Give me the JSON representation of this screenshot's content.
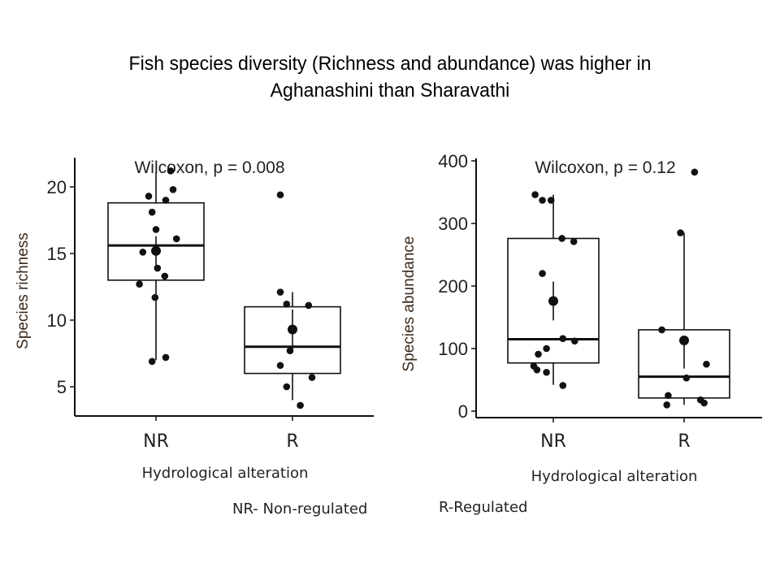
{
  "slide": {
    "title_line1": "Fish species diversity (Richness and abundance) was higher in",
    "title_line2": "Aghanashini than Sharavathi",
    "legend_note_nr": "NR- Non-regulated",
    "legend_note_r": "R-Regulated"
  },
  "chart_data": [
    {
      "type": "box",
      "id": "richness",
      "title": "",
      "annotation": "Wilcoxon, p = 0.008",
      "xlabel": "Hydrological alteration",
      "ylabel": "Species richness",
      "categories": [
        "NR",
        "R"
      ],
      "ylim": [
        3,
        22
      ],
      "yticks": [
        5,
        10,
        15,
        20
      ],
      "grid": false,
      "boxes": [
        {
          "category": "NR",
          "q1": 13.0,
          "median": 15.6,
          "q3": 18.8,
          "whisker_low": 7.0,
          "whisker_high": 21.1,
          "mean": 15.2,
          "mean_err_low": 14.0,
          "mean_err_high": 16.3
        },
        {
          "category": "R",
          "q1": 6.0,
          "median": 8.0,
          "q3": 11.0,
          "whisker_low": 4.0,
          "whisker_high": 12.1,
          "mean": 9.3,
          "mean_err_low": 7.8,
          "mean_err_high": 10.8
        }
      ],
      "points": [
        {
          "category": "NR",
          "jitter": 0.3,
          "y": 21.2
        },
        {
          "category": "NR",
          "jitter": 0.35,
          "y": 19.8
        },
        {
          "category": "NR",
          "jitter": -0.15,
          "y": 19.3
        },
        {
          "category": "NR",
          "jitter": 0.2,
          "y": 19.0
        },
        {
          "category": "NR",
          "jitter": -0.08,
          "y": 18.1
        },
        {
          "category": "NR",
          "jitter": 0.0,
          "y": 16.8
        },
        {
          "category": "NR",
          "jitter": 0.42,
          "y": 16.1
        },
        {
          "category": "NR",
          "jitter": -0.27,
          "y": 15.1
        },
        {
          "category": "NR",
          "jitter": -0.02,
          "y": 15.2
        },
        {
          "category": "NR",
          "jitter": 0.03,
          "y": 13.9
        },
        {
          "category": "NR",
          "jitter": 0.18,
          "y": 13.3
        },
        {
          "category": "NR",
          "jitter": -0.34,
          "y": 12.7
        },
        {
          "category": "NR",
          "jitter": -0.02,
          "y": 11.7
        },
        {
          "category": "NR",
          "jitter": -0.08,
          "y": 6.9
        },
        {
          "category": "NR",
          "jitter": 0.2,
          "y": 7.2
        },
        {
          "category": "R",
          "jitter": -0.25,
          "y": 19.4
        },
        {
          "category": "R",
          "jitter": -0.25,
          "y": 12.1
        },
        {
          "category": "R",
          "jitter": -0.12,
          "y": 11.2
        },
        {
          "category": "R",
          "jitter": 0.33,
          "y": 11.1
        },
        {
          "category": "R",
          "jitter": -0.05,
          "y": 7.7
        },
        {
          "category": "R",
          "jitter": -0.25,
          "y": 6.6
        },
        {
          "category": "R",
          "jitter": 0.4,
          "y": 5.7
        },
        {
          "category": "R",
          "jitter": -0.12,
          "y": 5.0
        },
        {
          "category": "R",
          "jitter": 0.16,
          "y": 3.6
        }
      ]
    },
    {
      "type": "box",
      "id": "abundance",
      "title": "",
      "annotation": "Wilcoxon, p = 0.12",
      "xlabel": "Hydrological alteration",
      "ylabel": "Species abundance",
      "categories": [
        "NR",
        "R"
      ],
      "ylim": [
        -8,
        410
      ],
      "yticks": [
        0,
        100,
        200,
        300,
        400
      ],
      "grid": false,
      "boxes": [
        {
          "category": "NR",
          "q1": 77,
          "median": 115,
          "q3": 276,
          "whisker_low": 42,
          "whisker_high": 346,
          "mean": 176,
          "mean_err_low": 145,
          "mean_err_high": 207
        },
        {
          "category": "R",
          "q1": 21,
          "median": 55,
          "q3": 130,
          "whisker_low": 10,
          "whisker_high": 285,
          "mean": 113,
          "mean_err_low": 68,
          "mean_err_high": 113
        }
      ],
      "points": [
        {
          "category": "NR",
          "jitter": -0.4,
          "y": 346
        },
        {
          "category": "NR",
          "jitter": -0.24,
          "y": 337
        },
        {
          "category": "NR",
          "jitter": -0.05,
          "y": 337
        },
        {
          "category": "NR",
          "jitter": 0.19,
          "y": 276
        },
        {
          "category": "NR",
          "jitter": 0.45,
          "y": 271
        },
        {
          "category": "NR",
          "jitter": -0.24,
          "y": 220
        },
        {
          "category": "NR",
          "jitter": 0.21,
          "y": 116
        },
        {
          "category": "NR",
          "jitter": 0.47,
          "y": 112
        },
        {
          "category": "NR",
          "jitter": -0.15,
          "y": 100
        },
        {
          "category": "NR",
          "jitter": -0.33,
          "y": 91
        },
        {
          "category": "NR",
          "jitter": -0.43,
          "y": 72
        },
        {
          "category": "NR",
          "jitter": -0.36,
          "y": 66
        },
        {
          "category": "NR",
          "jitter": -0.15,
          "y": 62
        },
        {
          "category": "NR",
          "jitter": 0.21,
          "y": 41
        },
        {
          "category": "R",
          "jitter": 0.23,
          "y": 382
        },
        {
          "category": "R",
          "jitter": -0.08,
          "y": 285
        },
        {
          "category": "R",
          "jitter": -0.49,
          "y": 130
        },
        {
          "category": "R",
          "jitter": 0.49,
          "y": 75
        },
        {
          "category": "R",
          "jitter": 0.05,
          "y": 53
        },
        {
          "category": "R",
          "jitter": -0.35,
          "y": 25
        },
        {
          "category": "R",
          "jitter": 0.36,
          "y": 18
        },
        {
          "category": "R",
          "jitter": 0.44,
          "y": 13
        },
        {
          "category": "R",
          "jitter": -0.38,
          "y": 10
        }
      ]
    }
  ]
}
